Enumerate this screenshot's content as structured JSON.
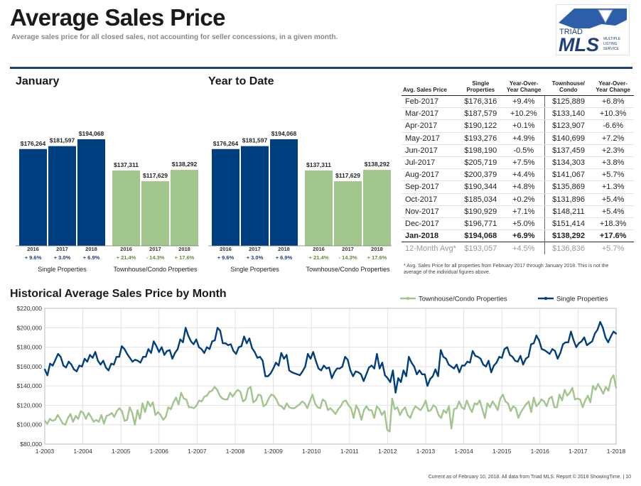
{
  "header": {
    "title": "Average Sales Price",
    "subtitle": "Average sales price for all closed sales, not accounting for seller concessions, in a given month."
  },
  "logo": {
    "line1": "TRIAD",
    "line2": "MLS",
    "tag1": "MULTIPLE",
    "tag2": "LISTING",
    "tag3": "SERVICE"
  },
  "colors": {
    "single": "#003f7f",
    "townhouse": "#a2c48d",
    "rule": "#1f3f7a"
  },
  "january": {
    "title": "January",
    "single_label": "Single Properties",
    "townhouse_label": "Townhouse/Condo Properties",
    "years": [
      "2016",
      "2017",
      "2018"
    ],
    "single": {
      "values": [
        176264,
        181597,
        194068
      ],
      "labels": [
        "$176,264",
        "$181,597",
        "$194,068"
      ],
      "changes": [
        "+ 9.6%",
        "+ 3.0%",
        "+ 6.9%"
      ]
    },
    "townhouse": {
      "values": [
        137311,
        117629,
        138292
      ],
      "labels": [
        "$137,311",
        "$117,629",
        "$138,292"
      ],
      "changes": [
        "+ 21.4%",
        "- 14.3%",
        "+ 17.6%"
      ]
    }
  },
  "ytd": {
    "title": "Year to Date",
    "single_label": "Single Properties",
    "townhouse_label": "Townhouse/Condo Properties",
    "years": [
      "2016",
      "2017",
      "2018"
    ],
    "single": {
      "values": [
        176264,
        181597,
        194068
      ],
      "labels": [
        "$176,264",
        "$181,597",
        "$194,068"
      ],
      "changes": [
        "+ 9.6%",
        "+ 3.0%",
        "+ 6.9%"
      ]
    },
    "townhouse": {
      "values": [
        137311,
        117629,
        138292
      ],
      "labels": [
        "$137,311",
        "$117,629",
        "$138,292"
      ],
      "changes": [
        "+ 21.4%",
        "- 14.3%",
        "+ 17.6%"
      ]
    }
  },
  "table": {
    "headers": [
      "Avg. Sales Price",
      "Single Properties",
      "Year-Over-Year Change",
      "Townhouse/ Condo",
      "Year-Over-Year Change"
    ],
    "rows": [
      [
        "Feb-2017",
        "$176,316",
        "+9.4%",
        "$125,889",
        "+6.8%"
      ],
      [
        "Mar-2017",
        "$187,579",
        "+10.2%",
        "$133,140",
        "+10.3%"
      ],
      [
        "Apr-2017",
        "$190,122",
        "+0.1%",
        "$123,907",
        "-6.6%"
      ],
      [
        "May-2017",
        "$193,276",
        "+4.9%",
        "$140,699",
        "+7.2%"
      ],
      [
        "Jun-2017",
        "$198,190",
        "-0.5%",
        "$137,459",
        "+2.3%"
      ],
      [
        "Jul-2017",
        "$205,719",
        "+7.5%",
        "$134,303",
        "+3.8%"
      ],
      [
        "Aug-2017",
        "$200,379",
        "+4.4%",
        "$141,067",
        "+5.7%"
      ],
      [
        "Sep-2017",
        "$190,344",
        "+4.8%",
        "$135,869",
        "+1.3%"
      ],
      [
        "Oct-2017",
        "$185,034",
        "+0.2%",
        "$131,896",
        "+5.4%"
      ],
      [
        "Nov-2017",
        "$190,929",
        "+7.1%",
        "$148,211",
        "+5.4%"
      ],
      [
        "Dec-2017",
        "$196,771",
        "+5.0%",
        "$151,414",
        "+18.3%"
      ],
      [
        "Jan-2018",
        "$194,068",
        "+6.9%",
        "$138,292",
        "+17.6%"
      ]
    ],
    "avg_row": [
      "12-Month Avg*",
      "$193,057",
      "+4.5%",
      "$136,836",
      "+5.7%"
    ],
    "footnote": "* Avg. Sales Price for all properties from February 2017 through January 2018. This is not the average of the individual figures above."
  },
  "history": {
    "title": "Historical Average Sales Price by Month",
    "legend_townhouse": "Townhouse/Condo Properties",
    "legend_single": "Single Properties"
  },
  "footer": "Current as of February 10, 2018. All data from Triad MLS. Report © 2018 ShowingTime. | 10",
  "chart_data": [
    {
      "type": "bar",
      "title": "January",
      "categories": [
        "2016",
        "2017",
        "2018"
      ],
      "series": [
        {
          "name": "Single Properties",
          "values": [
            176264,
            181597,
            194068
          ]
        },
        {
          "name": "Townhouse/Condo Properties",
          "values": [
            137311,
            117629,
            138292
          ]
        }
      ]
    },
    {
      "type": "bar",
      "title": "Year to Date",
      "categories": [
        "2016",
        "2017",
        "2018"
      ],
      "series": [
        {
          "name": "Single Properties",
          "values": [
            176264,
            181597,
            194068
          ]
        },
        {
          "name": "Townhouse/Condo Properties",
          "values": [
            137311,
            117629,
            138292
          ]
        }
      ]
    },
    {
      "type": "line",
      "title": "Historical Average Sales Price by Month",
      "ylim": [
        80000,
        220000
      ],
      "yticks": [
        "$80,000",
        "$100,000",
        "$120,000",
        "$140,000",
        "$160,000",
        "$180,000",
        "$200,000",
        "$220,000"
      ],
      "xticks": [
        "1-2003",
        "1-2004",
        "1-2005",
        "1-2006",
        "1-2007",
        "1-2008",
        "1-2009",
        "1-2010",
        "1-2011",
        "1-2012",
        "1-2013",
        "1-2014",
        "1-2015",
        "1-2016",
        "1-2017",
        "1-2018"
      ],
      "grid": true,
      "legend": "top-right",
      "x_start": "2003-01",
      "x_end": "2018-01",
      "series": [
        {
          "name": "Single Properties",
          "values": [
            157000,
            151000,
            163000,
            161000,
            167000,
            173000,
            170000,
            161000,
            159000,
            165000,
            162000,
            157000,
            155000,
            161000,
            160000,
            168000,
            165000,
            172000,
            169000,
            175000,
            166000,
            162000,
            166000,
            159000,
            156000,
            163000,
            162000,
            170000,
            170000,
            181000,
            178000,
            173000,
            169000,
            165000,
            167000,
            166000,
            164000,
            170000,
            170000,
            178000,
            174000,
            186000,
            181000,
            175000,
            180000,
            172000,
            176000,
            177000,
            168000,
            174000,
            178000,
            188000,
            185000,
            200000,
            192000,
            186000,
            183000,
            188000,
            180000,
            178000,
            174000,
            180000,
            178000,
            186000,
            187000,
            200000,
            197000,
            184000,
            184000,
            182000,
            183000,
            176000,
            173000,
            180000,
            181000,
            191000,
            184000,
            189000,
            179000,
            175000,
            169000,
            170000,
            166000,
            150000,
            150000,
            153000,
            158000,
            164000,
            161000,
            174000,
            168000,
            172000,
            156000,
            154000,
            153000,
            152000,
            151000,
            155000,
            160000,
            173000,
            168000,
            175000,
            166000,
            158000,
            156000,
            161000,
            158000,
            159000,
            148000,
            154000,
            158000,
            158000,
            160000,
            170000,
            167000,
            156000,
            150000,
            155000,
            154000,
            152000,
            145000,
            152000,
            159000,
            161000,
            158000,
            173000,
            158000,
            164000,
            151000,
            148000,
            144000,
            156000,
            133000,
            148000,
            144000,
            156000,
            150000,
            170000,
            164000,
            160000,
            152000,
            156000,
            152000,
            152000,
            140000,
            147000,
            150000,
            157000,
            150000,
            177000,
            170000,
            168000,
            162000,
            160000,
            158000,
            162000,
            154000,
            161000,
            161000,
            165000,
            164000,
            176000,
            171000,
            170000,
            168000,
            162000,
            160000,
            166000,
            154000,
            161000,
            164000,
            170000,
            169000,
            178000,
            180000,
            172000,
            170000,
            166000,
            165000,
            171000,
            162000,
            168000,
            170000,
            183000,
            184000,
            192000,
            187000,
            178000,
            177000,
            175000,
            173000,
            178000,
            176000,
            168000,
            174000,
            183000,
            185000,
            185000,
            196000,
            187000,
            180000,
            184000,
            186000,
            190000,
            182000,
            184000,
            186000,
            194000,
            198000,
            206000,
            200000,
            190000,
            185000,
            191000,
            196000,
            194000
          ],
          "color": "#003f7f"
        },
        {
          "name": "Townhouse/Condo Properties",
          "values": [
            104000,
            101000,
            106000,
            104000,
            105000,
            110000,
            106000,
            101000,
            100000,
            107000,
            111000,
            103000,
            109000,
            106000,
            114000,
            112000,
            106000,
            112000,
            108000,
            103000,
            105000,
            103000,
            110000,
            101000,
            109000,
            110000,
            112000,
            108000,
            114000,
            117000,
            114000,
            104000,
            105000,
            118000,
            112000,
            100000,
            115000,
            106000,
            122000,
            113000,
            124000,
            119000,
            123000,
            110000,
            113000,
            110000,
            105000,
            108000,
            118000,
            116000,
            123000,
            128000,
            121000,
            133000,
            127000,
            126000,
            118000,
            118000,
            117000,
            120000,
            125000,
            124000,
            129000,
            130000,
            134000,
            135000,
            139000,
            136000,
            130000,
            127000,
            126000,
            126000,
            133000,
            129000,
            133000,
            136000,
            134000,
            124000,
            126000,
            137000,
            139000,
            123000,
            125000,
            131000,
            130000,
            119000,
            121000,
            127000,
            131000,
            130000,
            126000,
            120000,
            119000,
            116000,
            122000,
            118000,
            117000,
            117000,
            119000,
            121000,
            124000,
            122000,
            117000,
            124000,
            131000,
            122000,
            118000,
            117000,
            126000,
            124000,
            115000,
            117000,
            114000,
            111000,
            116000,
            119000,
            124000,
            125000,
            120000,
            117000,
            107000,
            120000,
            115000,
            105000,
            115000,
            119000,
            115000,
            115000,
            107000,
            119000,
            116000,
            110000,
            114000,
            95000,
            93000,
            127000,
            116000,
            118000,
            110000,
            115000,
            118000,
            110000,
            107000,
            114000,
            119000,
            117000,
            115000,
            119000,
            125000,
            114000,
            115000,
            120000,
            118000,
            110000,
            107000,
            115000,
            112000,
            119000,
            96000,
            116000,
            117000,
            124000,
            118000,
            116000,
            125000,
            118000,
            113000,
            122000,
            121000,
            125000,
            116000,
            107000,
            122000,
            118000,
            124000,
            120000,
            115000,
            127000,
            131000,
            124000,
            122000,
            114000,
            119000,
            117000,
            107000,
            113000,
            117000,
            121000,
            124000,
            113000,
            128000,
            119000,
            122000,
            126000,
            124000,
            119000,
            127000,
            129000,
            118000,
            118000,
            131000,
            125000,
            136000,
            130000,
            133000,
            138000,
            126000,
            127000,
            126000,
            118000,
            125000,
            130000,
            123000,
            140000,
            136000,
            142000,
            137000,
            132000,
            139000,
            135000,
            147000,
            151000,
            138000
          ],
          "color": "#a2c48d"
        }
      ]
    }
  ]
}
